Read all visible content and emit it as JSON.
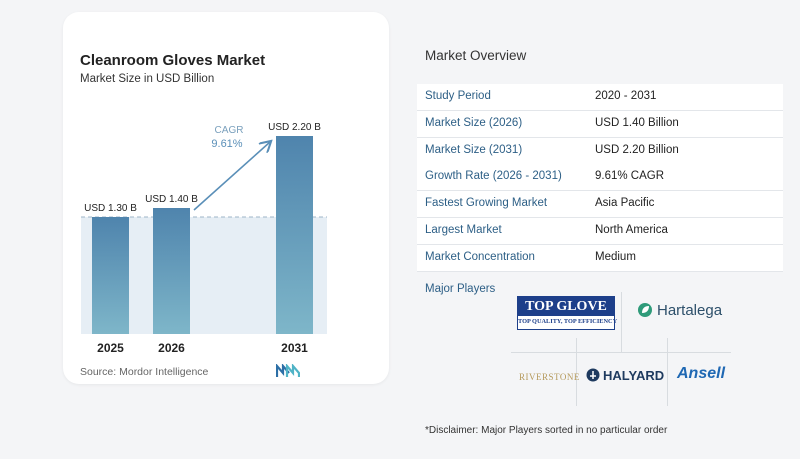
{
  "card": {
    "title": "Cleanroom Gloves Market",
    "subtitle": "Market Size in USD Billion",
    "source": "Source: Mordor Intelligence",
    "cagr_label": "CAGR",
    "cagr_value": "9.61%"
  },
  "colors": {
    "bar_top": "#4f84ad",
    "bar_bottom": "#7eb6c9",
    "shade": "#dde8f1",
    "arrow": "#5a8fb8",
    "label_blue": "#2d5f86"
  },
  "chart_data": {
    "type": "bar",
    "categories": [
      "2025",
      "2026",
      "2031"
    ],
    "values": [
      1.3,
      1.4,
      2.2
    ],
    "data_labels": [
      "USD 1.30 B",
      "USD 1.40 B",
      "USD 2.20 B"
    ],
    "ylim": [
      0,
      2.2
    ],
    "reference_value": 1.3,
    "title": "Cleanroom Gloves Market",
    "subtitle": "Market Size in USD Billion"
  },
  "overview": {
    "title": "Market Overview",
    "rows": [
      {
        "label": "Study Period",
        "value": "2020 - 2031"
      },
      {
        "label": "Market Size (2026)",
        "value": "USD 1.40 Billion"
      },
      {
        "label": "Market Size (2031)",
        "value": "USD 2.20 Billion"
      },
      {
        "label": "Growth Rate (2026 - 2031)",
        "value": "9.61% CAGR"
      },
      {
        "label": "Fastest Growing Market",
        "value": "Asia Pacific"
      },
      {
        "label": "Largest Market",
        "value": "North America"
      },
      {
        "label": "Market Concentration",
        "value": "Medium"
      }
    ],
    "players_label": "Major Players",
    "players": {
      "topglove_main": "TOP GLOVE",
      "topglove_tag": "TOP QUALITY, TOP EFFICIENCY",
      "hartalega": "Hartalega",
      "riverstone": "RIVERSTONE",
      "halyard": "HALYARD",
      "ansell": "Ansell"
    },
    "disclaimer": "*Disclaimer: Major Players sorted in no particular order"
  }
}
